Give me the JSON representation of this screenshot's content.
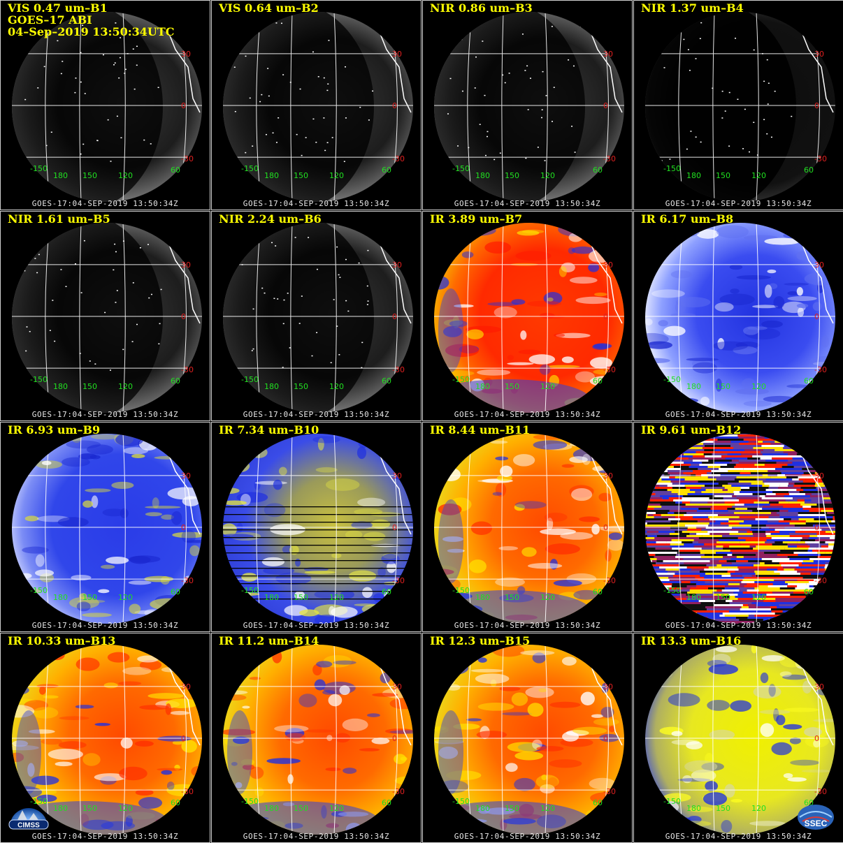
{
  "colors": {
    "title": "#ffff00",
    "footer": "#e8e8e8",
    "lat_red": "#e02020",
    "label_green": "#20e020",
    "frame": "#cfcfcf"
  },
  "lat_labels": [
    "30",
    "0",
    "-30"
  ],
  "lon_labels": [
    "-150",
    "180",
    "150",
    "120",
    "60"
  ],
  "panels": [
    {
      "title": "VIS 0.47 um–B1",
      "extra1": "GOES–17 ABI",
      "extra2": "04–Sep–2019 13:50:34UTC",
      "footer": "GOES-17:04-SEP-2019 13:50:34Z",
      "style": "vis"
    },
    {
      "title": "VIS 0.64 um–B2",
      "footer": "GOES-17:04-SEP-2019 13:50:34Z",
      "style": "vis"
    },
    {
      "title": "NIR 0.86 um–B3",
      "footer": "GOES-17:04-SEP-2019 13:50:34Z",
      "style": "vis"
    },
    {
      "title": "NIR 1.37 um–B4",
      "footer": "GOES-17:04-SEP-2019 13:50:34Z",
      "style": "dark"
    },
    {
      "title": "NIR 1.61 um–B5",
      "footer": "GOES-17:04-SEP-2019 13:50:34Z",
      "style": "vis"
    },
    {
      "title": "NIR 2.24 um–B6",
      "footer": "GOES-17:04-SEP-2019 13:50:34Z",
      "style": "vis"
    },
    {
      "title": "IR 3.89 um–B7",
      "footer": "GOES-17:04-SEP-2019 13:50:34Z",
      "style": "red"
    },
    {
      "title": "IR 6.17 um–B8",
      "footer": "GOES-17:04-SEP-2019 13:50:34Z",
      "style": "wv"
    },
    {
      "title": "IR 6.93 um–B9",
      "footer": "GOES-17:04-SEP-2019 13:50:34Z",
      "style": "wv2"
    },
    {
      "title": "IR 7.34 um–B10",
      "footer": "GOES-17:04-SEP-2019 13:50:34Z",
      "style": "wvy"
    },
    {
      "title": "IR 8.44 um–B11",
      "footer": "GOES-17:04-SEP-2019 13:50:34Z",
      "style": "ir"
    },
    {
      "title": "IR 9.61 um–B12",
      "footer": "GOES-17:04-SEP-2019 13:50:34Z",
      "style": "noise"
    },
    {
      "title": "IR 10.33 um–B13",
      "footer": "GOES-17:04-SEP-2019 13:50:34Z",
      "style": "ir"
    },
    {
      "title": "IR 11.2 um–B14",
      "footer": "GOES-17:04-SEP-2019 13:50:34Z",
      "style": "ir"
    },
    {
      "title": "IR 12.3 um–B15",
      "footer": "GOES-17:04-SEP-2019 13:50:34Z",
      "style": "ir"
    },
    {
      "title": "IR 13.3 um–B16",
      "footer": "GOES-17:04-SEP-2019 13:50:34Z",
      "style": "yel"
    }
  ],
  "logos": {
    "left": "CIMSS",
    "right": "SSEC"
  }
}
